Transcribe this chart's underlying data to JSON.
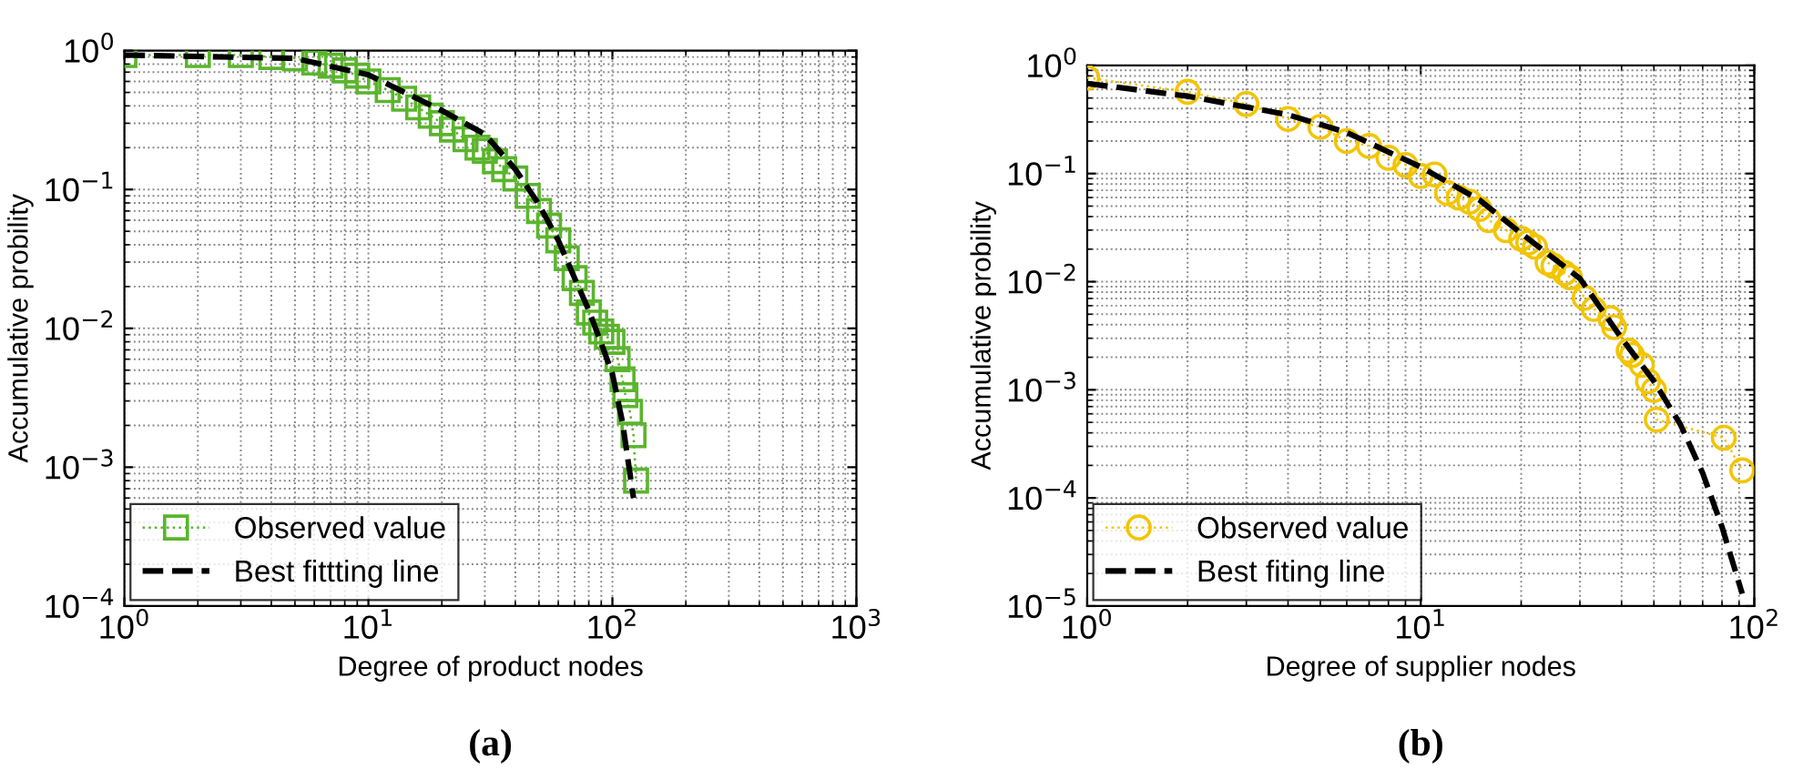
{
  "chart_data": [
    {
      "type": "line",
      "xlabel": "Degree of product nodes",
      "ylabel": "Accumulative probility",
      "log": "xy",
      "grid": true,
      "legend": "bottom left",
      "xlim": [
        1,
        1000
      ],
      "ylim": [
        0.0001,
        1
      ],
      "xticks": [
        {
          "value": 1,
          "label": "10$^{0}$"
        },
        {
          "value": 10,
          "label": "10$^{1}$"
        },
        {
          "value": 100,
          "label": "10$^{2}$"
        },
        {
          "value": 1000,
          "label": "10$^{3}$"
        }
      ],
      "yticks": [
        {
          "value": 0.0001,
          "label": "10$^{−4}$"
        },
        {
          "value": 0.001,
          "label": "10$^{−3}$"
        },
        {
          "value": 0.01,
          "label": "10$^{−2}$"
        },
        {
          "value": 0.1,
          "label": "10$^{−1}$"
        },
        {
          "value": 1,
          "label": "10$^{0}$"
        }
      ],
      "annotations": [
        "(a)"
      ],
      "series": [
        {
          "name": "Observed value",
          "marker": "square",
          "line_style": "dotted",
          "color": "#5ab52c",
          "x": [
            1,
            2,
            3,
            4,
            5,
            6,
            7,
            8,
            9,
            10,
            12,
            14,
            16,
            18,
            20,
            22,
            25,
            28,
            30,
            33,
            36,
            40,
            45,
            50,
            55,
            60,
            65,
            70,
            75,
            80,
            85,
            90,
            95,
            100,
            105,
            110,
            113,
            118,
            122,
            125
          ],
          "values": [
            0.93,
            0.93,
            0.93,
            0.9,
            0.88,
            0.82,
            0.78,
            0.72,
            0.66,
            0.6,
            0.52,
            0.45,
            0.39,
            0.34,
            0.3,
            0.27,
            0.23,
            0.2,
            0.19,
            0.16,
            0.14,
            0.12,
            0.09,
            0.07,
            0.055,
            0.043,
            0.032,
            0.023,
            0.018,
            0.013,
            0.011,
            0.0095,
            0.0087,
            0.008,
            0.006,
            0.0043,
            0.0033,
            0.0025,
            0.0017,
            0.0008
          ]
        },
        {
          "name": "Best fittting line",
          "type": "line",
          "marker": "none",
          "line_style": "dashed",
          "color": "#000000",
          "x": [
            1,
            5,
            10,
            20,
            30,
            40,
            50,
            60,
            70,
            80,
            90,
            100,
            110,
            122
          ],
          "values": [
            0.93,
            0.88,
            0.67,
            0.37,
            0.25,
            0.14,
            0.078,
            0.043,
            0.023,
            0.0135,
            0.0078,
            0.0047,
            0.0021,
            0.0006
          ]
        }
      ]
    },
    {
      "type": "line",
      "xlabel": "Degree of supplier nodes",
      "ylabel": "Accumulative probility",
      "log": "xy",
      "grid": true,
      "legend": "bottom left",
      "xlim": [
        1,
        100
      ],
      "ylim": [
        1e-05,
        1
      ],
      "xticks": [
        {
          "value": 1,
          "label": "10$^{0}$"
        },
        {
          "value": 10,
          "label": "10$^{1}$"
        },
        {
          "value": 100,
          "label": "10$^{2}$"
        }
      ],
      "yticks": [
        {
          "value": 1e-05,
          "label": "10$^{−5}$"
        },
        {
          "value": 0.0001,
          "label": "10$^{−4}$"
        },
        {
          "value": 0.001,
          "label": "10$^{−3}$"
        },
        {
          "value": 0.01,
          "label": "10$^{−2}$"
        },
        {
          "value": 0.1,
          "label": "10$^{−1}$"
        },
        {
          "value": 1,
          "label": "10$^{0}$"
        }
      ],
      "annotations": [
        "(b)"
      ],
      "series": [
        {
          "name": "Observed value",
          "marker": "circle",
          "line_style": "dotted",
          "color": "#f2c500",
          "x": [
            1,
            2,
            3,
            4,
            5,
            6,
            7,
            8,
            9,
            10,
            11,
            12,
            13,
            14,
            15,
            16,
            18,
            20,
            21,
            22,
            24,
            25,
            27,
            28,
            31,
            33,
            37,
            38,
            42,
            43,
            46,
            48,
            50,
            51,
            81,
            92
          ],
          "values": [
            0.77,
            0.57,
            0.44,
            0.32,
            0.27,
            0.2,
            0.18,
            0.14,
            0.12,
            0.095,
            0.098,
            0.066,
            0.06,
            0.055,
            0.047,
            0.037,
            0.03,
            0.025,
            0.023,
            0.021,
            0.015,
            0.014,
            0.012,
            0.011,
            0.0071,
            0.0056,
            0.0046,
            0.0038,
            0.0023,
            0.0021,
            0.0017,
            0.0012,
            0.001,
            0.00053,
            0.00036,
            0.00018
          ]
        },
        {
          "name": "Best fiting line",
          "type": "line",
          "marker": "none",
          "line_style": "dashed",
          "color": "#000000",
          "x": [
            1,
            2,
            4,
            6,
            10,
            15,
            20,
            30,
            40,
            50,
            60,
            70,
            80,
            92
          ],
          "values": [
            0.68,
            0.52,
            0.35,
            0.24,
            0.115,
            0.057,
            0.028,
            0.0107,
            0.003,
            0.0012,
            0.00048,
            0.00017,
            5.4e-05,
            1.3e-05
          ]
        }
      ]
    }
  ]
}
